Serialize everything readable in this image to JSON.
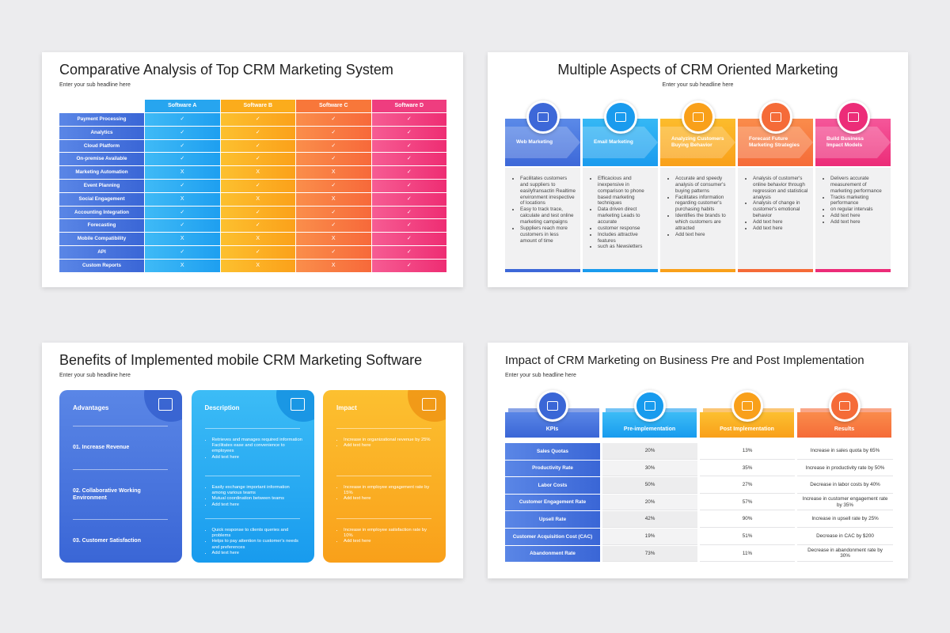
{
  "comparison": {
    "title": "Comparative Analysis of Top CRM Marketing System",
    "subtitle": "Enter your sub headline here",
    "columns": [
      "Software A",
      "Software B",
      "Software C",
      "Software D"
    ],
    "rows": [
      {
        "feature": "Payment Processing",
        "cells": [
          "✓",
          "✓",
          "✓",
          "✓"
        ]
      },
      {
        "feature": "Analytics",
        "cells": [
          "✓",
          "✓",
          "✓",
          "✓"
        ]
      },
      {
        "feature": "Cloud Platform",
        "cells": [
          "✓",
          "✓",
          "✓",
          "✓"
        ]
      },
      {
        "feature": "On-premise Available",
        "cells": [
          "✓",
          "✓",
          "✓",
          "✓"
        ]
      },
      {
        "feature": "Marketing Automation",
        "cells": [
          "X",
          "X",
          "X",
          "✓"
        ]
      },
      {
        "feature": "Event Planning",
        "cells": [
          "✓",
          "✓",
          "✓",
          "✓"
        ]
      },
      {
        "feature": "Social Engagement",
        "cells": [
          "X",
          "X",
          "X",
          "✓"
        ]
      },
      {
        "feature": "Accounting Integration",
        "cells": [
          "✓",
          "✓",
          "✓",
          "✓"
        ]
      },
      {
        "feature": "Forecasting",
        "cells": [
          "✓",
          "✓",
          "✓",
          "✓"
        ]
      },
      {
        "feature": "Mobile Compatibility",
        "cells": [
          "X",
          "X",
          "X",
          "✓"
        ]
      },
      {
        "feature": "API",
        "cells": [
          "✓",
          "✓",
          "✓",
          "✓"
        ]
      },
      {
        "feature": "Custom Reports",
        "cells": [
          "X",
          "X",
          "X",
          "✓"
        ]
      }
    ]
  },
  "aspects": {
    "title": "Multiple Aspects of CRM Oriented Marketing",
    "subtitle": "Enter your sub headline here",
    "items": [
      {
        "label": "Web Marketing",
        "bullets": [
          "Facilitates customers and suppliers to easilyfransactin Realtime environment irrespective of locations",
          "Easy to track trace, calculate and test online marketing campaigns",
          "Suppliers reach more customers in less amount of time"
        ]
      },
      {
        "label": "Email Marketing",
        "bullets": [
          "Efficacious and inexpensive in comparison to phone based marketing techniques",
          "Data driven direct marketing Leads to accurate",
          "customer response",
          "Includes attractive features",
          "such as Newsletters"
        ]
      },
      {
        "label": "Analyzing Customers Buying Behavior",
        "bullets": [
          "Accurate and speedy analysis of consumer's buying patterns",
          "Facilitates information regarding customer's purchasing habits",
          "Identifies the brands to which customers are attracted",
          "Add text here"
        ]
      },
      {
        "label": "Forecast Future Marketing Strategies",
        "bullets": [
          "Analysis of customer's online behavior through regression and statistical analysis",
          "Analysis of change in customer's emotional behavior",
          "Add text here",
          "Add text here"
        ]
      },
      {
        "label": "Build Business Impact Models",
        "bullets": [
          "Delivers accurate measurement of marketing performance",
          "Tracks marketing performance",
          "on regular intervals",
          "Add text here",
          "Add text here"
        ]
      }
    ]
  },
  "benefits": {
    "title": "Benefits of Implemented mobile CRM Marketing Software",
    "subtitle": "Enter your sub headline here",
    "advantages": {
      "heading": "Advantages",
      "items": [
        "01. Increase Revenue",
        "02. Collaborative Working Environment",
        "03. Customer Satisfaction"
      ]
    },
    "description": {
      "heading": "Description",
      "groups": [
        [
          "Retrieves and manages required information Facilitates ease and convenience to employees",
          "Add text here"
        ],
        [
          "Easily exchange important information among various teams",
          "Mutual coordination between teams",
          "Add text here"
        ],
        [
          "Quick response to clients queries and problems",
          "Helps to pay attention to customer's needs and preferences",
          "Add text here"
        ]
      ]
    },
    "impact": {
      "heading": "Impact",
      "groups": [
        [
          "Increase in organizational revenue by 25%",
          "Add text here"
        ],
        [
          "Increase in employee engagement rate by 15%",
          "Add text here"
        ],
        [
          "Increase in employee satisfaction rate by 10%",
          "Add text here"
        ]
      ]
    }
  },
  "impact": {
    "title": "Impact of CRM Marketing on Business Pre and Post Implementation",
    "subtitle": "Enter your sub headline here",
    "headers": [
      "KPIs",
      "Pre-implementation",
      "Post Implementation",
      "Results"
    ],
    "rows": [
      [
        "Sales Quotas",
        "20%",
        "13%",
        "Increase in sales quota by 65%"
      ],
      [
        "Productivity Rate",
        "30%",
        "35%",
        "Increase in productivity rate by 50%"
      ],
      [
        "Labor Costs",
        "50%",
        "27%",
        "Decrease  in labor costs by 40%"
      ],
      [
        "Customer Engagement Rate",
        "20%",
        "57%",
        "Increase in customer engagement rate by 35%"
      ],
      [
        "Upsell Rate",
        "42%",
        "90%",
        "Increase in upsell rate by 25%"
      ],
      [
        "Customer Acquisition Cost (CAC)",
        "19%",
        "51%",
        "Decrease in CAC by $200"
      ],
      [
        "Abandonment Rate",
        "73%",
        "11%",
        "Decrease in abandonment rate by 30%"
      ]
    ]
  }
}
